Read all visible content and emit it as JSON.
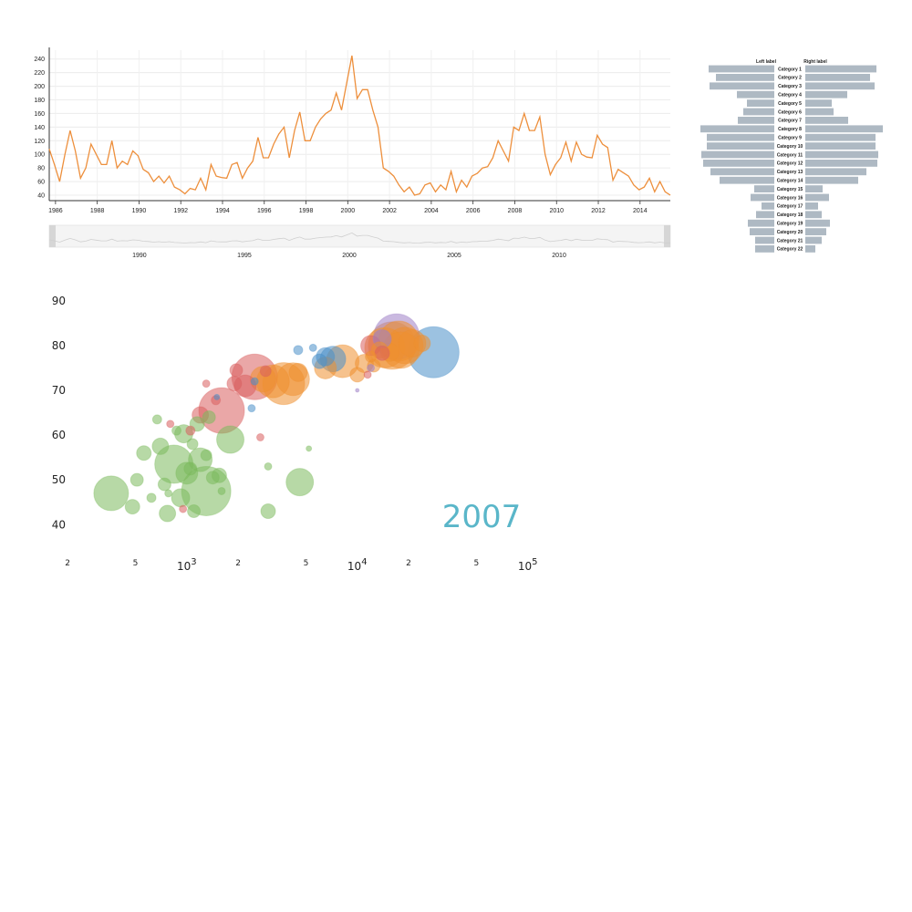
{
  "chart_data": [
    {
      "type": "line",
      "x_start": 1985.7,
      "x_step": 0.25,
      "values": [
        108,
        85,
        60,
        100,
        135,
        105,
        65,
        80,
        115,
        100,
        85,
        85,
        120,
        80,
        90,
        85,
        105,
        98,
        78,
        73,
        60,
        68,
        58,
        68,
        52,
        48,
        42,
        50,
        48,
        65,
        48,
        85,
        68,
        66,
        65,
        85,
        88,
        65,
        80,
        90,
        125,
        95,
        95,
        115,
        130,
        140,
        95,
        135,
        162,
        120,
        120,
        140,
        152,
        160,
        165,
        190,
        165,
        205,
        245,
        182,
        195,
        195,
        165,
        140,
        80,
        75,
        68,
        55,
        45,
        52,
        40,
        42,
        55,
        58,
        45,
        55,
        48,
        75,
        45,
        62,
        52,
        68,
        72,
        80,
        82,
        95,
        120,
        105,
        90,
        140,
        135,
        160,
        135,
        135,
        155,
        100,
        70,
        85,
        95,
        118,
        90,
        118,
        100,
        96,
        95,
        128,
        115,
        110,
        62,
        78,
        73,
        68,
        55,
        48,
        52,
        65,
        45,
        60,
        45,
        40
      ],
      "ylim": [
        32,
        253
      ],
      "y_ticks": [
        "40",
        "60",
        "80",
        "100",
        "120",
        "140",
        "160",
        "180",
        "200",
        "220",
        "240"
      ],
      "x_ticks": [
        "1986",
        "1988",
        "1990",
        "1992",
        "1994",
        "1996",
        "1998",
        "2000",
        "2002",
        "2004",
        "2006",
        "2008",
        "2010",
        "2012",
        "2014"
      ],
      "navigator_ticks": [
        "1990",
        "1995",
        "2000",
        "2005",
        "2010"
      ],
      "navigator_range": [
        1985.7,
        2015.3
      ],
      "color": "#ed8f3c",
      "grid": true
    },
    {
      "type": "bar",
      "orientation": "butterfly",
      "left_label": "Left label",
      "right_label": "Right label",
      "categories": [
        "Category 1",
        "Category 2",
        "Category 3",
        "Category 4",
        "Category 5",
        "Category 6",
        "Category 7",
        "Category 8",
        "Category 9",
        "Category 10",
        "Category 11",
        "Category 12",
        "Category 13",
        "Category 14",
        "Category 15",
        "Category 16",
        "Category 17",
        "Category 18",
        "Category 19",
        "Category 20",
        "Category 21",
        "Category 22"
      ],
      "left_values": [
        72,
        64,
        71,
        41,
        30,
        34,
        40,
        81,
        74,
        74,
        80,
        78,
        70,
        60,
        22,
        26,
        14,
        20,
        29,
        27,
        21,
        21
      ],
      "right_values": [
        78,
        71,
        76,
        46,
        29,
        31,
        47,
        85,
        77,
        77,
        80,
        79,
        67,
        58,
        19,
        26,
        14,
        18,
        27,
        23,
        18,
        11
      ],
      "bar_color": "#aeb9c3"
    },
    {
      "type": "scatter",
      "subtype": "bubble",
      "x_scale": "log",
      "xlim": [
        450,
        130000
      ],
      "ylim": [
        37,
        92
      ],
      "y_ticks": [
        "40",
        "50",
        "60",
        "70",
        "80",
        "90"
      ],
      "x_major_ticks": [
        {
          "value": 1000,
          "base": "10",
          "exp": "3"
        },
        {
          "value": 10000,
          "base": "10",
          "exp": "4"
        },
        {
          "value": 100000,
          "base": "10",
          "exp": "5"
        }
      ],
      "x_minor_ticks": [
        {
          "value": 200,
          "label": "2"
        },
        {
          "value": 500,
          "label": "5"
        },
        {
          "value": 2000,
          "label": "2"
        },
        {
          "value": 5000,
          "label": "5"
        },
        {
          "value": 20000,
          "label": "2"
        },
        {
          "value": 50000,
          "label": "5"
        }
      ],
      "year": "2007",
      "colors": {
        "Africa": "#7cba5c",
        "Americas": "#d95e5e",
        "Asia": "#d95e5e",
        "Europe": "#ee8f2f",
        "Oceania": "#4a90c8",
        "Other": "#9f80c6"
      },
      "points": [
        {
          "x": 360,
          "y": 47,
          "r": 19,
          "c": "Africa"
        },
        {
          "x": 1300,
          "y": 47.5,
          "r": 27,
          "c": "Africa"
        },
        {
          "x": 840,
          "y": 53.5,
          "r": 21,
          "c": "Africa"
        },
        {
          "x": 1000,
          "y": 51.5,
          "r": 12,
          "c": "Africa"
        },
        {
          "x": 1200,
          "y": 54.5,
          "r": 13,
          "c": "Africa"
        },
        {
          "x": 920,
          "y": 46,
          "r": 10,
          "c": "Africa"
        },
        {
          "x": 1800,
          "y": 59,
          "r": 15,
          "c": "Africa"
        },
        {
          "x": 4600,
          "y": 49.5,
          "r": 15,
          "c": "Africa"
        },
        {
          "x": 560,
          "y": 56,
          "r": 8,
          "c": "Africa"
        },
        {
          "x": 700,
          "y": 57.5,
          "r": 9,
          "c": "Africa"
        },
        {
          "x": 960,
          "y": 60.3,
          "r": 10,
          "c": "Africa"
        },
        {
          "x": 1050,
          "y": 52.5,
          "r": 7,
          "c": "Africa"
        },
        {
          "x": 1100,
          "y": 43,
          "r": 7,
          "c": "Africa"
        },
        {
          "x": 1420,
          "y": 50.5,
          "r": 7,
          "c": "Africa"
        },
        {
          "x": 1300,
          "y": 55.5,
          "r": 6,
          "c": "Africa"
        },
        {
          "x": 1550,
          "y": 51,
          "r": 8,
          "c": "Africa"
        },
        {
          "x": 770,
          "y": 42.5,
          "r": 9,
          "c": "Africa"
        },
        {
          "x": 480,
          "y": 44,
          "r": 8,
          "c": "Africa"
        },
        {
          "x": 510,
          "y": 50,
          "r": 7,
          "c": "Africa"
        },
        {
          "x": 740,
          "y": 49,
          "r": 7,
          "c": "Africa"
        },
        {
          "x": 3000,
          "y": 43,
          "r": 8,
          "c": "Africa"
        },
        {
          "x": 1150,
          "y": 62.5,
          "r": 8,
          "c": "Africa"
        },
        {
          "x": 1080,
          "y": 58,
          "r": 6,
          "c": "Africa"
        },
        {
          "x": 670,
          "y": 63.5,
          "r": 5,
          "c": "Africa"
        },
        {
          "x": 870,
          "y": 61,
          "r": 5,
          "c": "Africa"
        },
        {
          "x": 1350,
          "y": 64,
          "r": 7,
          "c": "Africa"
        },
        {
          "x": 3000,
          "y": 53,
          "r": 4,
          "c": "Africa"
        },
        {
          "x": 5200,
          "y": 57,
          "r": 3,
          "c": "Africa"
        },
        {
          "x": 620,
          "y": 46,
          "r": 5,
          "c": "Africa"
        },
        {
          "x": 1600,
          "y": 47.5,
          "r": 4,
          "c": "Africa"
        },
        {
          "x": 780,
          "y": 47,
          "r": 4,
          "c": "Africa"
        },
        {
          "x": 1600,
          "y": 65.5,
          "r": 25,
          "c": "Asia"
        },
        {
          "x": 2500,
          "y": 73,
          "r": 25,
          "c": "Asia"
        },
        {
          "x": 1200,
          "y": 64.5,
          "r": 9,
          "c": "Asia"
        },
        {
          "x": 1050,
          "y": 61,
          "r": 5,
          "c": "Asia"
        },
        {
          "x": 2200,
          "y": 71,
          "r": 12,
          "c": "Asia"
        },
        {
          "x": 1950,
          "y": 74.5,
          "r": 7,
          "c": "Asia"
        },
        {
          "x": 2900,
          "y": 74.3,
          "r": 6,
          "c": "Asia"
        },
        {
          "x": 2700,
          "y": 59.5,
          "r": 4,
          "c": "Asia"
        },
        {
          "x": 1480,
          "y": 67.8,
          "r": 5,
          "c": "Asia"
        },
        {
          "x": 800,
          "y": 62.5,
          "r": 4,
          "c": "Asia"
        },
        {
          "x": 950,
          "y": 43.5,
          "r": 4,
          "c": "Asia"
        },
        {
          "x": 4500,
          "y": 74,
          "r": 10,
          "c": "Europe"
        },
        {
          "x": 3700,
          "y": 71.5,
          "r": 23,
          "c": "Europe"
        },
        {
          "x": 4200,
          "y": 72.5,
          "r": 18,
          "c": "Europe"
        },
        {
          "x": 3200,
          "y": 72,
          "r": 18,
          "c": "Europe"
        },
        {
          "x": 6500,
          "y": 75,
          "r": 12,
          "c": "Europe"
        },
        {
          "x": 8200,
          "y": 76.5,
          "r": 18,
          "c": "Europe"
        },
        {
          "x": 10000,
          "y": 73.5,
          "r": 8,
          "c": "Europe"
        },
        {
          "x": 11000,
          "y": 76,
          "r": 10,
          "c": "Europe"
        },
        {
          "x": 12000,
          "y": 77.5,
          "r": 6,
          "c": "Europe"
        },
        {
          "x": 13500,
          "y": 79,
          "r": 9,
          "c": "Europe"
        },
        {
          "x": 14500,
          "y": 79.5,
          "r": 22,
          "c": "Europe"
        },
        {
          "x": 16000,
          "y": 80,
          "r": 26,
          "c": "Europe"
        },
        {
          "x": 17500,
          "y": 81,
          "r": 22,
          "c": "Europe"
        },
        {
          "x": 19000,
          "y": 80,
          "r": 20,
          "c": "Europe"
        },
        {
          "x": 18000,
          "y": 79,
          "r": 20,
          "c": "Europe"
        },
        {
          "x": 21000,
          "y": 80.5,
          "r": 15,
          "c": "Europe"
        },
        {
          "x": 24000,
          "y": 80.5,
          "r": 9,
          "c": "Europe"
        },
        {
          "x": 15500,
          "y": 78.5,
          "r": 10,
          "c": "Europe"
        },
        {
          "x": 12500,
          "y": 75.5,
          "r": 7,
          "c": "Europe"
        },
        {
          "x": 2800,
          "y": 72.5,
          "r": 14,
          "c": "Europe"
        },
        {
          "x": 6500,
          "y": 77.5,
          "r": 10,
          "c": "Oceania"
        },
        {
          "x": 7200,
          "y": 77,
          "r": 14,
          "c": "Oceania"
        },
        {
          "x": 6000,
          "y": 76.5,
          "r": 8,
          "c": "Oceania"
        },
        {
          "x": 4500,
          "y": 79,
          "r": 5,
          "c": "Oceania"
        },
        {
          "x": 5500,
          "y": 79.5,
          "r": 4,
          "c": "Oceania"
        },
        {
          "x": 28000,
          "y": 78.5,
          "r": 28,
          "c": "Oceania"
        },
        {
          "x": 2400,
          "y": 66,
          "r": 4,
          "c": "Oceania"
        },
        {
          "x": 2500,
          "y": 72,
          "r": 4,
          "c": "Oceania"
        },
        {
          "x": 1500,
          "y": 68.5,
          "r": 3,
          "c": "Oceania"
        },
        {
          "x": 17000,
          "y": 82,
          "r": 25,
          "c": "Other"
        },
        {
          "x": 14000,
          "y": 81.5,
          "r": 10,
          "c": "Other"
        },
        {
          "x": 12000,
          "y": 75,
          "r": 4,
          "c": "Other"
        },
        {
          "x": 10000,
          "y": 70,
          "r": 2,
          "c": "Other"
        },
        {
          "x": 11500,
          "y": 73.5,
          "r": 4,
          "c": "Asia"
        },
        {
          "x": 12000,
          "y": 80,
          "r": 11,
          "c": "Asia"
        },
        {
          "x": 14000,
          "y": 78.3,
          "r": 8,
          "c": "Asia"
        },
        {
          "x": 1300,
          "y": 71.5,
          "r": 4,
          "c": "Asia"
        },
        {
          "x": 1900,
          "y": 71.5,
          "r": 8,
          "c": "Asia"
        }
      ]
    }
  ]
}
